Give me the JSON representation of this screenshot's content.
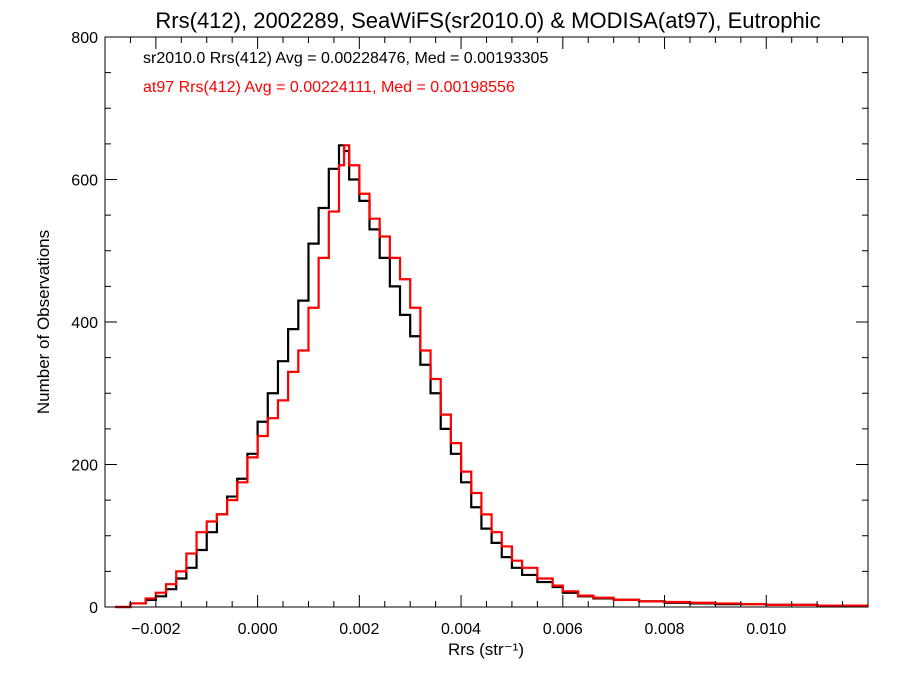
{
  "chart_data": {
    "type": "line",
    "title": "Rrs(412), 2002289, SeaWiFS(sr2010.0) & MODISA(at97), Eutrophic",
    "xlabel": "Rrs (str⁻¹)",
    "ylabel": "Number of Observations",
    "xlim": [
      -0.003,
      0.012
    ],
    "ylim": [
      0,
      800
    ],
    "xticks": [
      -0.002,
      0.0,
      0.002,
      0.004,
      0.006,
      0.008,
      0.01
    ],
    "xtick_labels": [
      "−0.002",
      "0.000",
      "0.002",
      "0.004",
      "0.006",
      "0.008",
      "0.010"
    ],
    "yticks": [
      0,
      200,
      400,
      600,
      800
    ],
    "ytick_labels": [
      "0",
      "200",
      "400",
      "600",
      "800"
    ],
    "grid": false,
    "step": true,
    "legend_placement": "top-left",
    "series": [
      {
        "name": "sr2010.0",
        "color": "#000000",
        "legend_text": "sr2010.0 Rrs(412) Avg = 0.00228476, Med = 0.00193305",
        "x": [
          -0.0028,
          -0.0025,
          -0.0022,
          -0.002,
          -0.0018,
          -0.0016,
          -0.0014,
          -0.0012,
          -0.001,
          -0.0008,
          -0.0006,
          -0.0004,
          -0.0002,
          0.0,
          0.0002,
          0.0004,
          0.0006,
          0.0008,
          0.001,
          0.0012,
          0.0014,
          0.0016,
          0.0017,
          0.0018,
          0.002,
          0.0022,
          0.0024,
          0.0026,
          0.0028,
          0.003,
          0.0032,
          0.0034,
          0.0036,
          0.0038,
          0.004,
          0.0042,
          0.0044,
          0.0046,
          0.0048,
          0.005,
          0.0052,
          0.0055,
          0.0058,
          0.006,
          0.0063,
          0.0066,
          0.007,
          0.0075,
          0.008,
          0.0085,
          0.009,
          0.0095,
          0.01,
          0.0105,
          0.011,
          0.0115,
          0.012
        ],
        "y": [
          0,
          5,
          10,
          15,
          25,
          40,
          55,
          80,
          105,
          130,
          155,
          180,
          215,
          260,
          300,
          345,
          390,
          430,
          510,
          560,
          615,
          648,
          640,
          600,
          570,
          530,
          490,
          450,
          410,
          380,
          340,
          300,
          250,
          215,
          175,
          140,
          110,
          90,
          70,
          55,
          45,
          35,
          28,
          20,
          15,
          12,
          10,
          8,
          6,
          5,
          4,
          4,
          3,
          3,
          2,
          2,
          2
        ]
      },
      {
        "name": "at97",
        "color": "#ff0000",
        "legend_text": "at97 Rrs(412) Avg = 0.00224111, Med = 0.00198556",
        "x": [
          -0.0028,
          -0.0025,
          -0.0022,
          -0.002,
          -0.0018,
          -0.0016,
          -0.0014,
          -0.0012,
          -0.001,
          -0.0008,
          -0.0006,
          -0.0004,
          -0.0002,
          0.0,
          0.0002,
          0.0004,
          0.0006,
          0.0008,
          0.001,
          0.0012,
          0.0014,
          0.0016,
          0.0017,
          0.0018,
          0.002,
          0.0022,
          0.0024,
          0.0026,
          0.0028,
          0.003,
          0.0032,
          0.0034,
          0.0036,
          0.0038,
          0.004,
          0.0042,
          0.0044,
          0.0046,
          0.0048,
          0.005,
          0.0052,
          0.0055,
          0.0058,
          0.006,
          0.0063,
          0.0066,
          0.007,
          0.0075,
          0.008,
          0.0085,
          0.009,
          0.0095,
          0.01,
          0.0105,
          0.011,
          0.0115,
          0.012
        ],
        "y": [
          0,
          5,
          12,
          20,
          32,
          50,
          75,
          105,
          120,
          130,
          150,
          175,
          210,
          240,
          265,
          290,
          330,
          360,
          420,
          490,
          555,
          620,
          648,
          620,
          580,
          545,
          520,
          490,
          460,
          420,
          360,
          320,
          270,
          230,
          190,
          160,
          130,
          105,
          85,
          65,
          55,
          40,
          30,
          22,
          16,
          13,
          10,
          8,
          7,
          6,
          5,
          4,
          3,
          3,
          2,
          2,
          2
        ]
      }
    ]
  }
}
